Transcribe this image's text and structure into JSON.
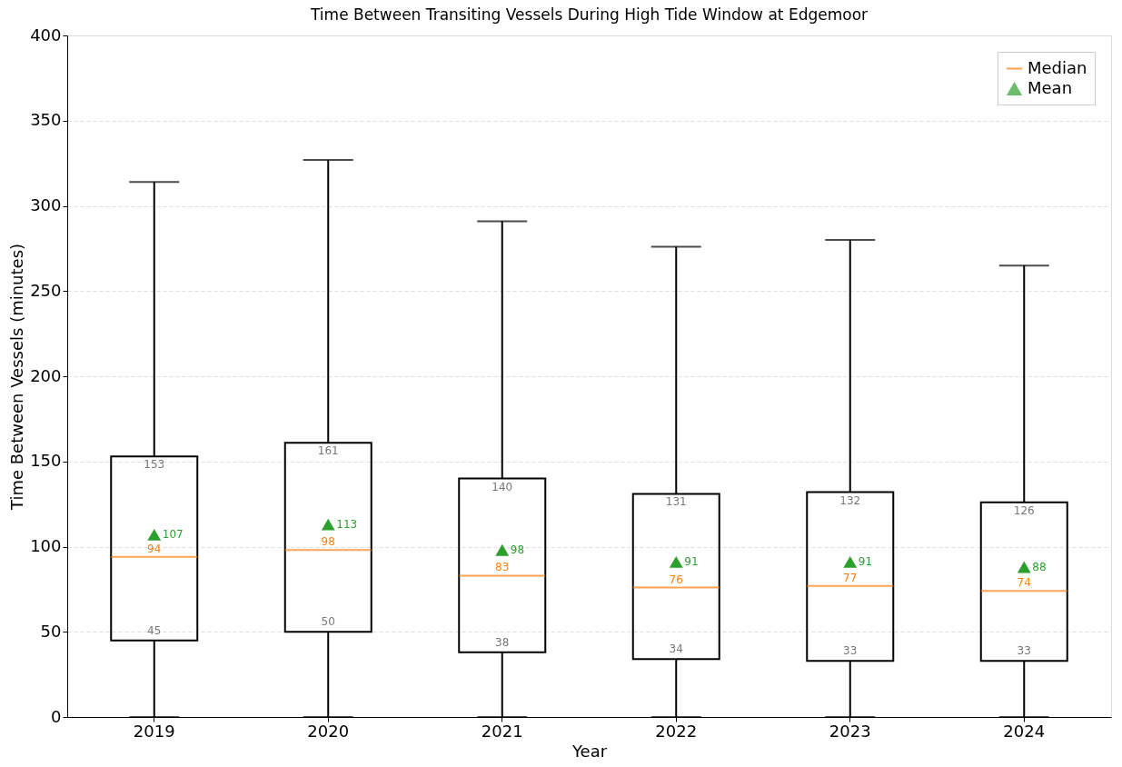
{
  "chart_data": {
    "type": "box",
    "title": "Time Between Transiting Vessels During High Tide Window at Edgemoor",
    "xlabel": "Year",
    "ylabel": "Time Between Vessels (minutes)",
    "categories": [
      "2019",
      "2020",
      "2021",
      "2022",
      "2023",
      "2024"
    ],
    "series": [
      {
        "type": "box",
        "name": "Median",
        "color": "#ff7f0e",
        "boxes": [
          {
            "low": 0,
            "q1": 45,
            "median": 94,
            "q3": 153,
            "high": 314
          },
          {
            "low": 0,
            "q1": 50,
            "median": 98,
            "q3": 161,
            "high": 327
          },
          {
            "low": 0,
            "q1": 38,
            "median": 83,
            "q3": 140,
            "high": 291
          },
          {
            "low": 0,
            "q1": 34,
            "median": 76,
            "q3": 131,
            "high": 276
          },
          {
            "low": 0,
            "q1": 33,
            "median": 77,
            "q3": 132,
            "high": 280
          },
          {
            "low": 0,
            "q1": 33,
            "median": 74,
            "q3": 126,
            "high": 265
          }
        ]
      },
      {
        "type": "scatter",
        "name": "Mean",
        "color": "#2ca02c",
        "marker": "triangle",
        "values": [
          107,
          113,
          98,
          91,
          91,
          88
        ]
      }
    ],
    "annotations": [
      {
        "text": "153",
        "x": "2019",
        "y": 153
      },
      {
        "text": "94",
        "x": "2019",
        "y": 94
      },
      {
        "text": "45",
        "x": "2019",
        "y": 45
      },
      {
        "text": "107",
        "x": "2019",
        "y": 107
      },
      {
        "text": "161",
        "x": "2020",
        "y": 161
      },
      {
        "text": "98",
        "x": "2020",
        "y": 98
      },
      {
        "text": "50",
        "x": "2020",
        "y": 50
      },
      {
        "text": "113",
        "x": "2020",
        "y": 113
      },
      {
        "text": "140",
        "x": "2021",
        "y": 140
      },
      {
        "text": "83",
        "x": "2021",
        "y": 83
      },
      {
        "text": "38",
        "x": "2021",
        "y": 38
      },
      {
        "text": "98",
        "x": "2021",
        "y": 98
      },
      {
        "text": "131",
        "x": "2022",
        "y": 131
      },
      {
        "text": "76",
        "x": "2022",
        "y": 76
      },
      {
        "text": "34",
        "x": "2022",
        "y": 34
      },
      {
        "text": "91",
        "x": "2022",
        "y": 91
      },
      {
        "text": "132",
        "x": "2023",
        "y": 132
      },
      {
        "text": "77",
        "x": "2023",
        "y": 77
      },
      {
        "text": "33",
        "x": "2023",
        "y": 33
      },
      {
        "text": "91",
        "x": "2023",
        "y": 91
      },
      {
        "text": "126",
        "x": "2024",
        "y": 126
      },
      {
        "text": "74",
        "x": "2024",
        "y": 74
      },
      {
        "text": "33",
        "x": "2024",
        "y": 33
      },
      {
        "text": "88",
        "x": "2024",
        "y": 88
      }
    ],
    "ylim": [
      0,
      400
    ],
    "yticks": [
      0,
      50,
      100,
      150,
      200,
      250,
      300,
      350,
      400
    ],
    "grid": "y",
    "legend": "top right"
  }
}
